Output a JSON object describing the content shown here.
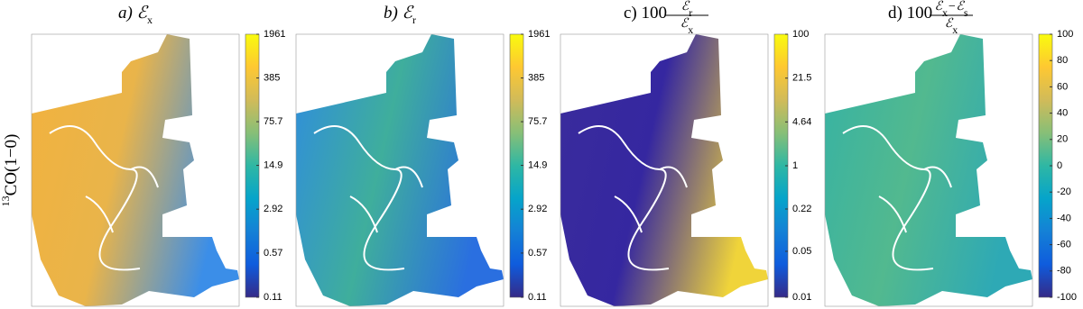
{
  "chart_data": [
    {
      "type": "image",
      "title": [
        {
          "text": "a) ℰ"
        },
        {
          "sub": "x"
        }
      ],
      "ylabel": [
        {
          "sup": "13"
        },
        {
          "text": "CO(1−0)"
        }
      ],
      "colorbar": {
        "log": true,
        "lim": [
          0.11,
          1961
        ],
        "ticks": [
          0.11,
          0.57,
          2.92,
          14.9,
          75.7,
          385,
          1961
        ],
        "colors": [
          "#352a87",
          "#0f5cdd",
          "#1481d6",
          "#06a4ca",
          "#2eb7a4",
          "#87bf77",
          "#d1bb59",
          "#fec832",
          "#f9fb0e"
        ]
      }
    },
    {
      "type": "image",
      "title": [
        {
          "text": "b) ℰ"
        },
        {
          "sub": "r"
        }
      ],
      "colorbar": {
        "log": true,
        "lim": [
          0.11,
          1961
        ],
        "ticks": [
          0.11,
          0.57,
          2.92,
          14.9,
          75.7,
          385,
          1961
        ],
        "colors": [
          "#352a87",
          "#0f5cdd",
          "#1481d6",
          "#06a4ca",
          "#2eb7a4",
          "#87bf77",
          "#d1bb59",
          "#fec832",
          "#f9fb0e"
        ]
      }
    },
    {
      "type": "image",
      "title": [
        {
          "text": "c) 100"
        }
      ],
      "numerator": [
        {
          "text": "ℰ"
        },
        {
          "sub": "r"
        }
      ],
      "denominator": [
        {
          "text": "ℰ"
        },
        {
          "sub": "x"
        }
      ],
      "colorbar": {
        "log": true,
        "lim": [
          0.01,
          100
        ],
        "ticks": [
          0.01,
          0.05,
          0.22,
          1,
          4.64,
          21.5,
          100
        ],
        "colors": [
          "#352a87",
          "#0f5cdd",
          "#1481d6",
          "#06a4ca",
          "#2eb7a4",
          "#87bf77",
          "#d1bb59",
          "#fec832",
          "#f9fb0e"
        ]
      }
    },
    {
      "type": "image",
      "title": [
        {
          "text": "d) 100"
        }
      ],
      "numerator": [
        {
          "text": "ℰ"
        },
        {
          "sub": "x"
        },
        {
          "text": "−ℰ"
        },
        {
          "sub": "s"
        }
      ],
      "denominator": [
        {
          "text": "ℰ"
        },
        {
          "sub": "x"
        }
      ],
      "colorbar": {
        "log": false,
        "lim": [
          -100,
          100
        ],
        "ticks": [
          -100,
          -80,
          -60,
          -40,
          -20,
          0,
          20,
          40,
          60,
          80,
          100
        ],
        "colors": [
          "#352a87",
          "#0f5cdd",
          "#1481d6",
          "#06a4ca",
          "#2eb7a4",
          "#87bf77",
          "#d1bb59",
          "#fec832",
          "#f9fb0e"
        ]
      }
    }
  ]
}
